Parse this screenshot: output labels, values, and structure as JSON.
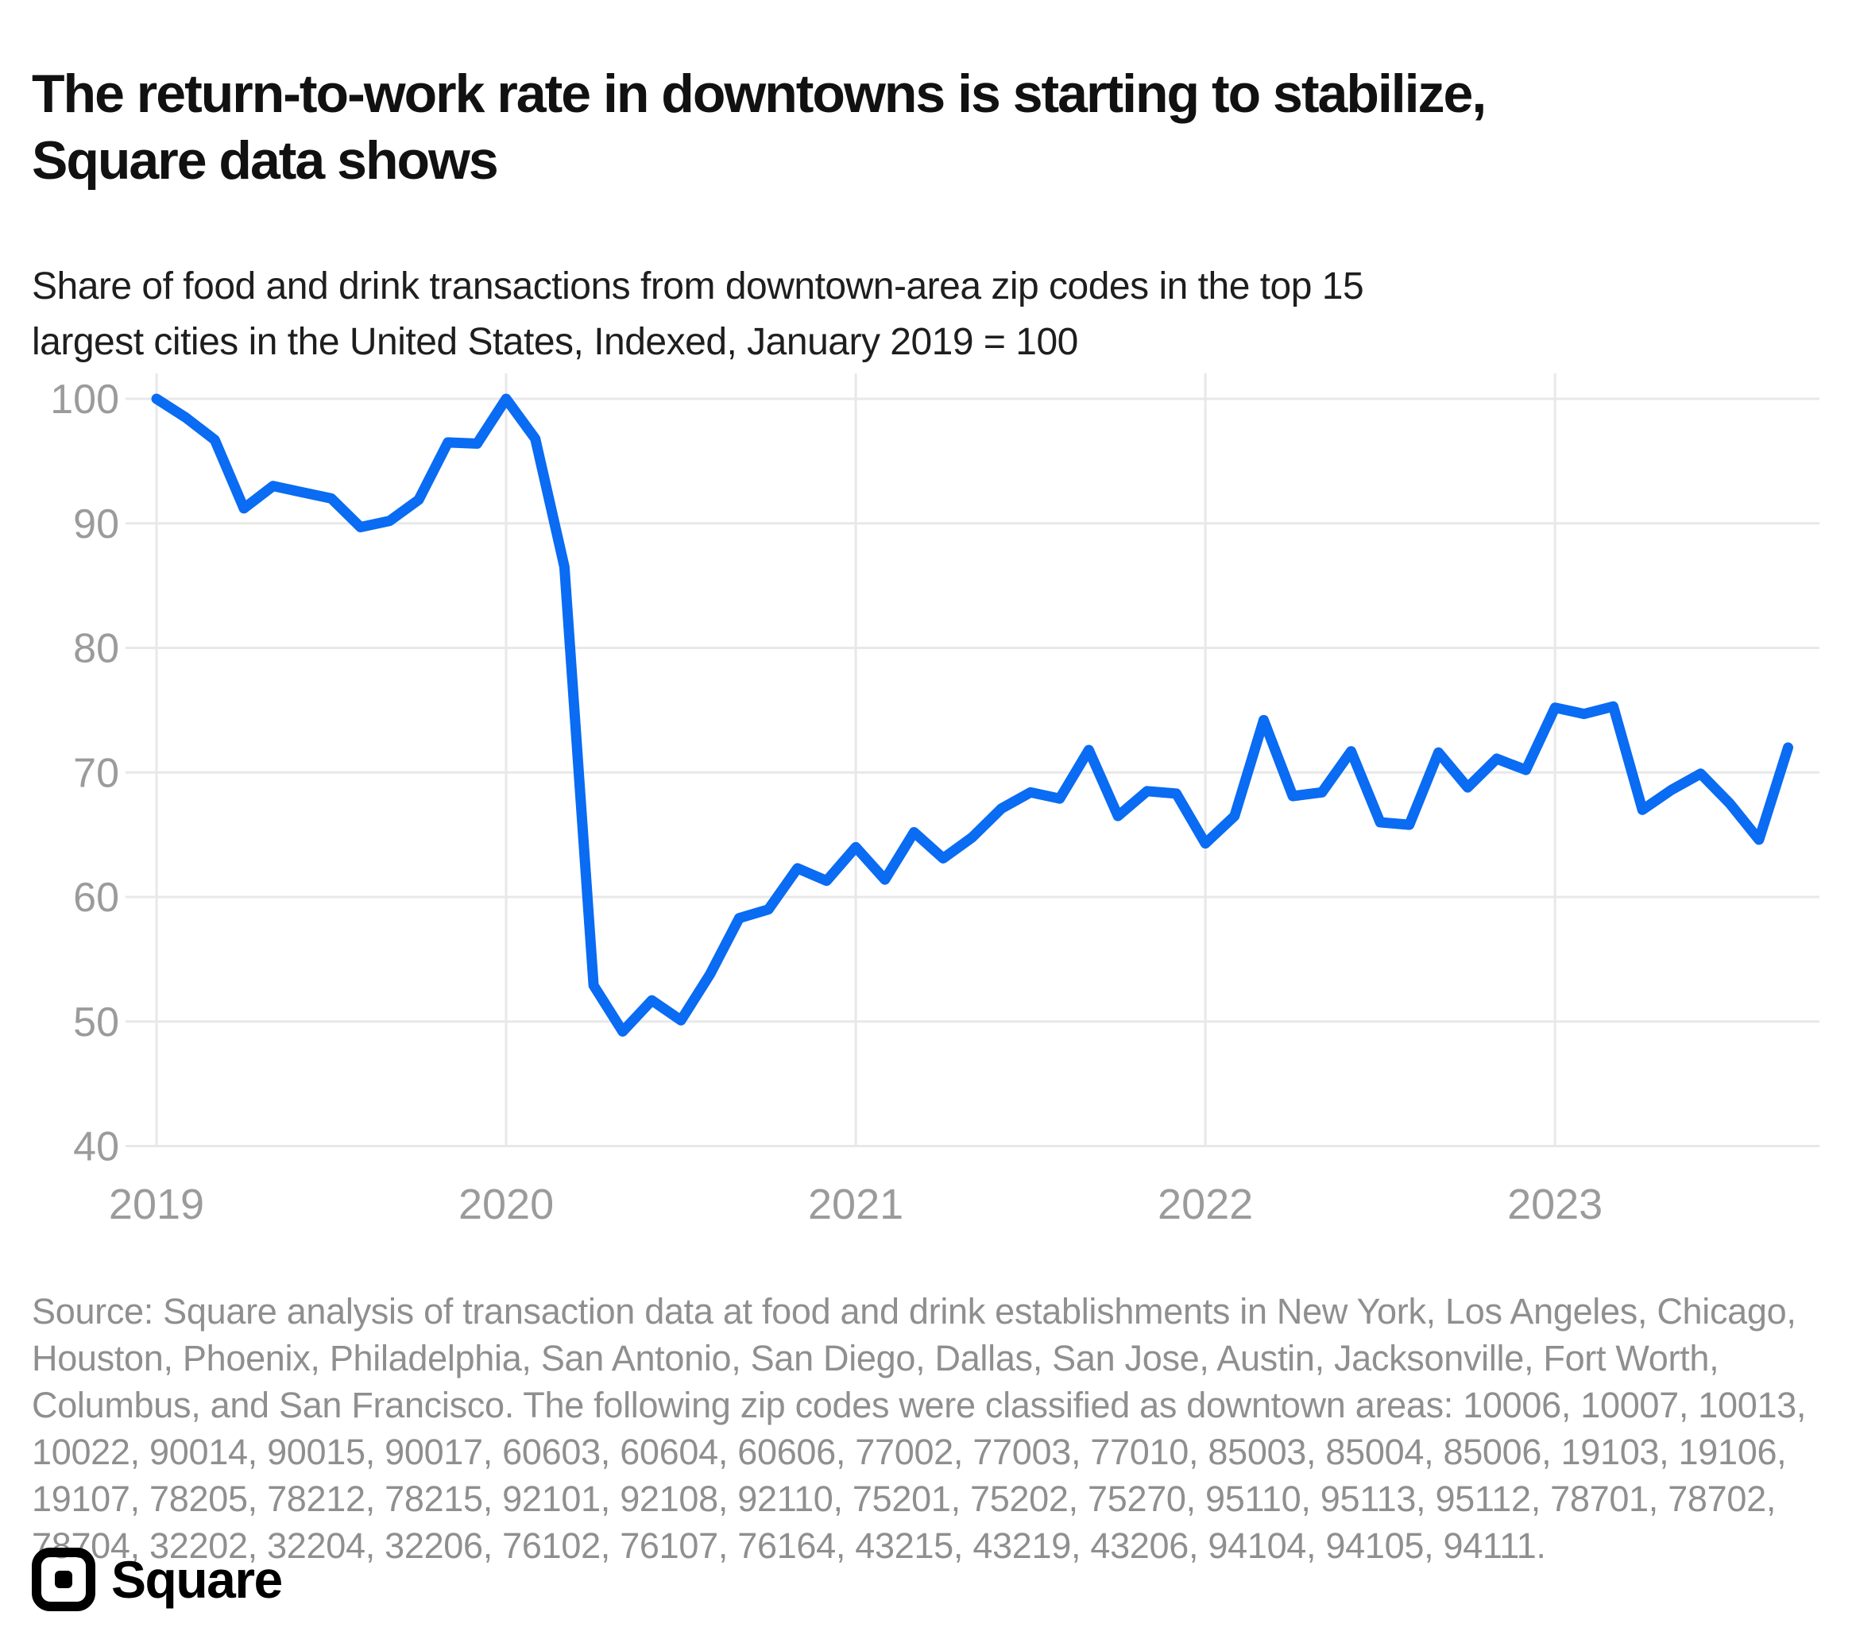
{
  "header": {
    "title_lines": [
      "The return-to-work rate in downtowns is starting to stabilize,",
      "Square data shows"
    ],
    "subtitle_lines": [
      "Share of food and drink transactions from downtown-area zip codes in the top 15",
      "largest cities in the United States, Indexed, January 2019 = 100"
    ]
  },
  "footer": {
    "source": "Source: Square analysis of transaction data at food and drink establishments in New York, Los Angeles, Chicago, Houston, Phoenix, Philadelphia, San Antonio, San Diego, Dallas, San Jose, Austin, Jacksonville, Fort Worth, Columbus, and San Francisco. The following zip codes were classified as downtown areas: 10006, 10007, 10013, 10022, 90014, 90015, 90017, 60603, 60604, 60606, 77002, 77003, 77010, 85003, 85004, 85006, 19103, 19106, 19107, 78205, 78212, 78215, 92101, 92108, 92110, 75201, 75202, 75270, 95110, 95113, 95112, 78701, 78702, 78704, 32202, 32204, 32206, 76102, 76107, 76164, 43215, 43219, 43206, 94104, 94105, 94111.",
    "brand": "Square"
  },
  "chart_data": {
    "type": "line",
    "title": "Share of food and drink transactions from downtown-area zip codes, indexed (January 2019 = 100)",
    "series_name": "Downtown food and drink transaction index",
    "frequency": "monthly",
    "x_start": "2019-01",
    "x_end": "2023-09",
    "x_tick_labels": [
      "2019",
      "2020",
      "2021",
      "2022",
      "2023"
    ],
    "x_tick_month_offsets": [
      0,
      12,
      24,
      36,
      48
    ],
    "y_ticks": [
      40,
      50,
      60,
      70,
      80,
      90,
      100
    ],
    "ylim": [
      40,
      100
    ],
    "grid": true,
    "legend": false,
    "values": [
      100,
      98.5,
      96.7,
      91.2,
      93,
      92.5,
      92,
      89.7,
      90.2,
      91.9,
      96.5,
      96.4,
      100,
      96.8,
      86.5,
      52.9,
      49.2,
      51.7,
      50.1,
      53.8,
      58.3,
      59,
      62.3,
      61.3,
      64,
      61.4,
      65.2,
      63.1,
      64.8,
      67.1,
      68.4,
      67.9,
      71.8,
      66.5,
      68.5,
      68.3,
      64.3,
      66.5,
      74.2,
      68.1,
      68.4,
      71.7,
      66,
      65.8,
      71.6,
      68.8,
      71.1,
      70.2,
      75.2,
      74.7,
      75.3,
      67,
      68.6,
      69.9,
      67.5,
      64.6,
      72
    ],
    "line_color": "#0a6bf3",
    "grid_color": "#e8e8e8",
    "axis_label_color": "#9b9b9b"
  }
}
